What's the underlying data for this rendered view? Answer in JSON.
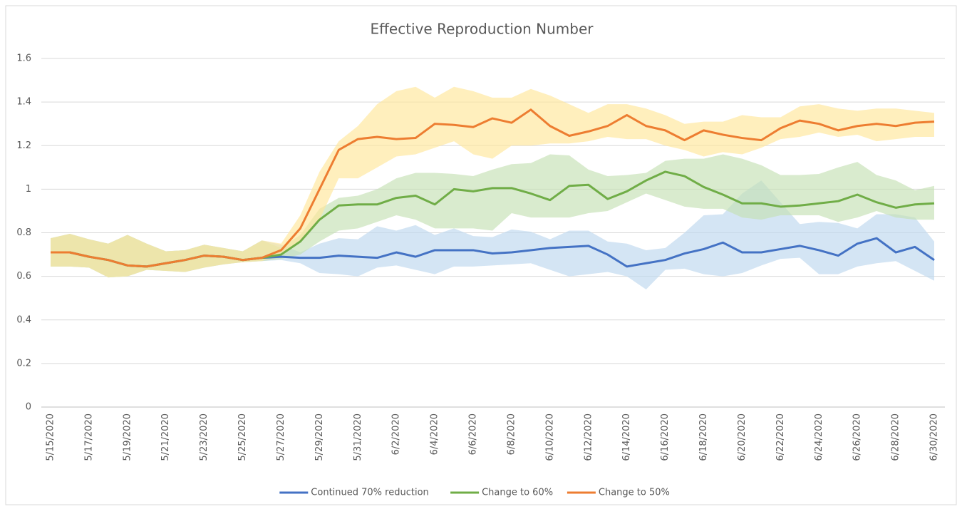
{
  "chart_data": {
    "type": "line",
    "title": "Effective Reproduction Number",
    "categories": [
      "5/15/2020",
      null,
      "5/17/2020",
      null,
      "5/19/2020",
      null,
      "5/21/2020",
      null,
      "5/23/2020",
      null,
      "5/25/2020",
      null,
      "5/27/2020",
      null,
      "5/29/2020",
      null,
      "5/31/2020",
      null,
      "6/2/2020",
      null,
      "6/4/2020",
      null,
      "6/6/2020",
      null,
      "6/8/2020",
      null,
      "6/10/2020",
      null,
      "6/12/2020",
      null,
      "6/14/2020",
      null,
      "6/16/2020",
      null,
      "6/18/2020",
      null,
      "6/20/2020",
      null,
      "6/22/2020",
      null,
      "6/24/2020",
      null,
      "6/26/2020",
      null,
      "6/28/2020",
      null,
      "6/30/2020"
    ],
    "ylim": [
      0,
      1.6
    ],
    "yticks": [
      0,
      0.2,
      0.4,
      0.6,
      0.8,
      1,
      1.2,
      1.4,
      1.6
    ],
    "grid": true,
    "legend": "bottom",
    "series": [
      {
        "name": "Continued 70% reduction",
        "color": "#4472c4",
        "band_color": "#bdd7ee",
        "values": [
          0.71,
          0.71,
          0.69,
          0.675,
          0.65,
          0.645,
          0.66,
          0.675,
          0.695,
          0.69,
          0.675,
          0.685,
          0.69,
          0.685,
          0.685,
          0.695,
          0.69,
          0.685,
          0.71,
          0.69,
          0.72,
          0.72,
          0.72,
          0.705,
          0.71,
          0.72,
          0.73,
          0.735,
          0.74,
          0.7,
          0.645,
          0.66,
          0.675,
          0.705,
          0.725,
          0.755,
          0.71,
          0.71,
          0.725,
          0.74,
          0.72,
          0.695,
          0.75,
          0.775,
          0.71,
          0.735,
          0.675
        ],
        "lower": [
          0.645,
          0.645,
          0.64,
          0.595,
          0.6,
          0.63,
          0.625,
          0.62,
          0.64,
          0.655,
          0.665,
          0.67,
          0.675,
          0.66,
          0.615,
          0.61,
          0.6,
          0.64,
          0.65,
          0.63,
          0.61,
          0.645,
          0.645,
          0.65,
          0.655,
          0.66,
          0.63,
          0.6,
          0.61,
          0.62,
          0.6,
          0.54,
          0.63,
          0.635,
          0.61,
          0.6,
          0.615,
          0.65,
          0.68,
          0.685,
          0.61,
          0.61,
          0.645,
          0.66,
          0.67,
          0.625,
          0.58
        ],
        "upper": [
          0.775,
          0.795,
          0.77,
          0.75,
          0.79,
          0.75,
          0.715,
          0.72,
          0.745,
          0.73,
          0.715,
          0.765,
          0.745,
          0.71,
          0.75,
          0.775,
          0.77,
          0.83,
          0.81,
          0.835,
          0.79,
          0.82,
          0.785,
          0.78,
          0.815,
          0.805,
          0.77,
          0.81,
          0.81,
          0.76,
          0.75,
          0.72,
          0.73,
          0.8,
          0.88,
          0.885,
          0.98,
          1.04,
          0.94,
          0.84,
          0.85,
          0.845,
          0.82,
          0.885,
          0.885,
          0.87,
          0.76
        ]
      },
      {
        "name": "Change to 60%",
        "color": "#70ad47",
        "band_color": "#c5e0b4",
        "values": [
          0.71,
          0.71,
          0.69,
          0.675,
          0.65,
          0.645,
          0.66,
          0.675,
          0.695,
          0.69,
          0.675,
          0.685,
          0.7,
          0.76,
          0.86,
          0.925,
          0.93,
          0.93,
          0.96,
          0.97,
          0.93,
          1.0,
          0.99,
          1.005,
          1.005,
          0.98,
          0.95,
          1.015,
          1.02,
          0.955,
          0.99,
          1.04,
          1.08,
          1.06,
          1.01,
          0.975,
          0.935,
          0.935,
          0.92,
          0.925,
          0.935,
          0.945,
          0.975,
          0.94,
          0.915,
          0.93,
          0.935
        ],
        "lower": [
          0.645,
          0.645,
          0.64,
          0.595,
          0.6,
          0.63,
          0.625,
          0.62,
          0.64,
          0.655,
          0.665,
          0.67,
          0.68,
          0.7,
          0.76,
          0.81,
          0.82,
          0.85,
          0.88,
          0.86,
          0.82,
          0.82,
          0.82,
          0.81,
          0.89,
          0.87,
          0.87,
          0.87,
          0.89,
          0.9,
          0.94,
          0.98,
          0.95,
          0.92,
          0.91,
          0.91,
          0.87,
          0.86,
          0.88,
          0.88,
          0.88,
          0.85,
          0.87,
          0.9,
          0.87,
          0.86,
          0.86
        ],
        "upper": [
          0.775,
          0.795,
          0.77,
          0.75,
          0.79,
          0.75,
          0.715,
          0.72,
          0.745,
          0.73,
          0.715,
          0.765,
          0.73,
          0.79,
          0.91,
          0.96,
          0.97,
          1.0,
          1.05,
          1.075,
          1.075,
          1.07,
          1.06,
          1.09,
          1.115,
          1.12,
          1.16,
          1.155,
          1.09,
          1.06,
          1.065,
          1.075,
          1.13,
          1.14,
          1.14,
          1.16,
          1.14,
          1.11,
          1.065,
          1.065,
          1.07,
          1.1,
          1.125,
          1.065,
          1.04,
          0.995,
          1.015
        ]
      },
      {
        "name": "Change to 50%",
        "color": "#ed7d31",
        "band_color": "#ffe699",
        "values": [
          0.71,
          0.71,
          0.69,
          0.675,
          0.65,
          0.645,
          0.66,
          0.675,
          0.695,
          0.69,
          0.675,
          0.685,
          0.72,
          0.82,
          1.0,
          1.18,
          1.23,
          1.24,
          1.23,
          1.235,
          1.3,
          1.295,
          1.285,
          1.325,
          1.305,
          1.365,
          1.29,
          1.245,
          1.265,
          1.29,
          1.34,
          1.29,
          1.27,
          1.225,
          1.27,
          1.25,
          1.235,
          1.225,
          1.28,
          1.315,
          1.3,
          1.27,
          1.29,
          1.3,
          1.29,
          1.305,
          1.31
        ],
        "lower": [
          0.645,
          0.645,
          0.64,
          0.595,
          0.6,
          0.63,
          0.625,
          0.62,
          0.64,
          0.655,
          0.665,
          0.67,
          0.7,
          0.76,
          0.86,
          1.05,
          1.05,
          1.1,
          1.15,
          1.16,
          1.19,
          1.22,
          1.16,
          1.14,
          1.2,
          1.2,
          1.21,
          1.21,
          1.22,
          1.24,
          1.23,
          1.23,
          1.2,
          1.18,
          1.15,
          1.17,
          1.16,
          1.19,
          1.23,
          1.24,
          1.26,
          1.24,
          1.25,
          1.22,
          1.23,
          1.24,
          1.24
        ],
        "upper": [
          0.775,
          0.795,
          0.77,
          0.75,
          0.79,
          0.75,
          0.715,
          0.72,
          0.745,
          0.73,
          0.715,
          0.765,
          0.75,
          0.88,
          1.08,
          1.22,
          1.29,
          1.39,
          1.45,
          1.47,
          1.42,
          1.47,
          1.45,
          1.42,
          1.42,
          1.46,
          1.43,
          1.39,
          1.35,
          1.39,
          1.39,
          1.37,
          1.34,
          1.3,
          1.31,
          1.31,
          1.34,
          1.33,
          1.33,
          1.38,
          1.39,
          1.37,
          1.36,
          1.37,
          1.37,
          1.36,
          1.35
        ]
      }
    ]
  }
}
